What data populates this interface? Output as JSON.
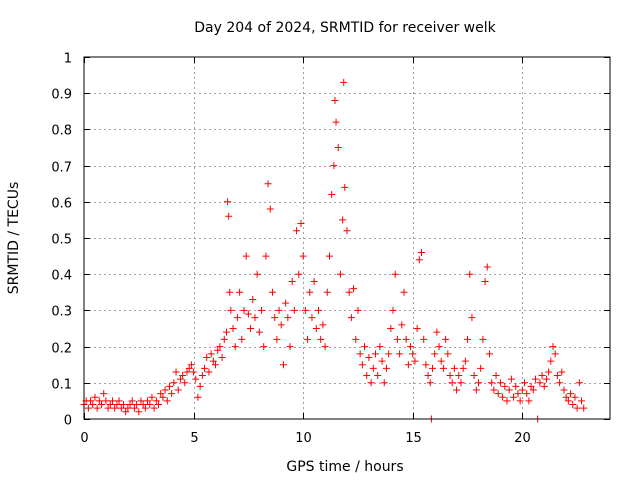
{
  "chart_data": {
    "type": "scatter",
    "title": "Day 204 of 2024, SRMTID for receiver welk",
    "xlabel": "GPS time / hours",
    "ylabel": "SRMTID / TECUs",
    "xlim": [
      0,
      24
    ],
    "ylim": [
      0,
      1
    ],
    "x_ticks": [
      0,
      5,
      10,
      15,
      20
    ],
    "x_tick_labels": [
      "0",
      "5",
      "10",
      "15",
      "20"
    ],
    "y_ticks": [
      0,
      0.1,
      0.2,
      0.3,
      0.4,
      0.5,
      0.6,
      0.7,
      0.8,
      0.9,
      1
    ],
    "y_tick_labels": [
      "0",
      "0.1",
      "0.2",
      "0.3",
      "0.4",
      "0.5",
      "0.6",
      "0.7",
      "0.8",
      "0.9",
      "1"
    ],
    "grid": true,
    "marker": "+",
    "marker_color": "#ff0000",
    "series": [
      {
        "name": "SRMTID",
        "points": [
          [
            0.0,
            0.04
          ],
          [
            0.1,
            0.05
          ],
          [
            0.2,
            0.03
          ],
          [
            0.3,
            0.05
          ],
          [
            0.4,
            0.04
          ],
          [
            0.5,
            0.06
          ],
          [
            0.6,
            0.03
          ],
          [
            0.7,
            0.05
          ],
          [
            0.8,
            0.04
          ],
          [
            0.9,
            0.07
          ],
          [
            1.0,
            0.05
          ],
          [
            1.1,
            0.03
          ],
          [
            1.2,
            0.04
          ],
          [
            1.3,
            0.05
          ],
          [
            1.4,
            0.03
          ],
          [
            1.5,
            0.04
          ],
          [
            1.6,
            0.05
          ],
          [
            1.7,
            0.03
          ],
          [
            1.8,
            0.04
          ],
          [
            1.9,
            0.02
          ],
          [
            2.0,
            0.03
          ],
          [
            2.1,
            0.04
          ],
          [
            2.2,
            0.05
          ],
          [
            2.3,
            0.03
          ],
          [
            2.4,
            0.04
          ],
          [
            2.5,
            0.02
          ],
          [
            2.6,
            0.05
          ],
          [
            2.7,
            0.04
          ],
          [
            2.8,
            0.03
          ],
          [
            2.9,
            0.05
          ],
          [
            3.0,
            0.04
          ],
          [
            3.1,
            0.06
          ],
          [
            3.2,
            0.03
          ],
          [
            3.3,
            0.05
          ],
          [
            3.4,
            0.04
          ],
          [
            3.5,
            0.07
          ],
          [
            3.6,
            0.06
          ],
          [
            3.7,
            0.08
          ],
          [
            3.8,
            0.05
          ],
          [
            3.9,
            0.09
          ],
          [
            4.0,
            0.07
          ],
          [
            4.1,
            0.1
          ],
          [
            4.2,
            0.13
          ],
          [
            4.3,
            0.08
          ],
          [
            4.4,
            0.11
          ],
          [
            4.5,
            0.12
          ],
          [
            4.6,
            0.1
          ],
          [
            4.7,
            0.13
          ],
          [
            4.8,
            0.14
          ],
          [
            4.9,
            0.15
          ],
          [
            5.0,
            0.13
          ],
          [
            5.1,
            0.11
          ],
          [
            5.2,
            0.06
          ],
          [
            5.3,
            0.09
          ],
          [
            5.4,
            0.12
          ],
          [
            5.5,
            0.14
          ],
          [
            5.6,
            0.17
          ],
          [
            5.7,
            0.13
          ],
          [
            5.8,
            0.18
          ],
          [
            5.9,
            0.16
          ],
          [
            6.0,
            0.15
          ],
          [
            6.1,
            0.19
          ],
          [
            6.2,
            0.2
          ],
          [
            6.3,
            0.17
          ],
          [
            6.4,
            0.22
          ],
          [
            6.5,
            0.24
          ],
          [
            6.55,
            0.6
          ],
          [
            6.6,
            0.56
          ],
          [
            6.65,
            0.35
          ],
          [
            6.7,
            0.3
          ],
          [
            6.8,
            0.25
          ],
          [
            6.9,
            0.2
          ],
          [
            7.0,
            0.28
          ],
          [
            7.1,
            0.35
          ],
          [
            7.2,
            0.22
          ],
          [
            7.3,
            0.3
          ],
          [
            7.4,
            0.45
          ],
          [
            7.5,
            0.29
          ],
          [
            7.6,
            0.25
          ],
          [
            7.7,
            0.33
          ],
          [
            7.8,
            0.28
          ],
          [
            7.9,
            0.4
          ],
          [
            8.0,
            0.24
          ],
          [
            8.1,
            0.3
          ],
          [
            8.2,
            0.2
          ],
          [
            8.3,
            0.45
          ],
          [
            8.4,
            0.65
          ],
          [
            8.5,
            0.58
          ],
          [
            8.6,
            0.35
          ],
          [
            8.7,
            0.28
          ],
          [
            8.8,
            0.22
          ],
          [
            8.9,
            0.3
          ],
          [
            9.0,
            0.26
          ],
          [
            9.1,
            0.15
          ],
          [
            9.2,
            0.32
          ],
          [
            9.3,
            0.28
          ],
          [
            9.4,
            0.2
          ],
          [
            9.5,
            0.38
          ],
          [
            9.6,
            0.3
          ],
          [
            9.7,
            0.52
          ],
          [
            9.8,
            0.4
          ],
          [
            9.9,
            0.54
          ],
          [
            10.0,
            0.45
          ],
          [
            10.1,
            0.3
          ],
          [
            10.2,
            0.22
          ],
          [
            10.3,
            0.35
          ],
          [
            10.4,
            0.28
          ],
          [
            10.5,
            0.38
          ],
          [
            10.6,
            0.25
          ],
          [
            10.7,
            0.3
          ],
          [
            10.8,
            0.22
          ],
          [
            10.9,
            0.26
          ],
          [
            11.0,
            0.2
          ],
          [
            11.1,
            0.35
          ],
          [
            11.2,
            0.45
          ],
          [
            11.3,
            0.62
          ],
          [
            11.4,
            0.7
          ],
          [
            11.45,
            0.88
          ],
          [
            11.5,
            0.82
          ],
          [
            11.6,
            0.75
          ],
          [
            11.7,
            0.4
          ],
          [
            11.8,
            0.55
          ],
          [
            11.85,
            0.93
          ],
          [
            11.9,
            0.64
          ],
          [
            12.0,
            0.52
          ],
          [
            12.1,
            0.35
          ],
          [
            12.2,
            0.28
          ],
          [
            12.3,
            0.36
          ],
          [
            12.4,
            0.22
          ],
          [
            12.5,
            0.3
          ],
          [
            12.6,
            0.18
          ],
          [
            12.7,
            0.15
          ],
          [
            12.8,
            0.2
          ],
          [
            12.9,
            0.12
          ],
          [
            13.0,
            0.17
          ],
          [
            13.1,
            0.1
          ],
          [
            13.2,
            0.14
          ],
          [
            13.3,
            0.18
          ],
          [
            13.4,
            0.12
          ],
          [
            13.5,
            0.2
          ],
          [
            13.6,
            0.16
          ],
          [
            13.7,
            0.1
          ],
          [
            13.8,
            0.14
          ],
          [
            13.9,
            0.18
          ],
          [
            14.0,
            0.25
          ],
          [
            14.1,
            0.3
          ],
          [
            14.2,
            0.4
          ],
          [
            14.3,
            0.22
          ],
          [
            14.4,
            0.18
          ],
          [
            14.5,
            0.26
          ],
          [
            14.6,
            0.35
          ],
          [
            14.7,
            0.22
          ],
          [
            14.8,
            0.15
          ],
          [
            14.9,
            0.2
          ],
          [
            15.0,
            0.18
          ],
          [
            15.1,
            0.16
          ],
          [
            15.2,
            0.25
          ],
          [
            15.3,
            0.44
          ],
          [
            15.4,
            0.46
          ],
          [
            15.5,
            0.22
          ],
          [
            15.6,
            0.15
          ],
          [
            15.7,
            0.12
          ],
          [
            15.8,
            0.1
          ],
          [
            15.85,
            0.0
          ],
          [
            15.9,
            0.14
          ],
          [
            16.0,
            0.18
          ],
          [
            16.1,
            0.24
          ],
          [
            16.2,
            0.2
          ],
          [
            16.3,
            0.16
          ],
          [
            16.4,
            0.14
          ],
          [
            16.5,
            0.22
          ],
          [
            16.6,
            0.18
          ],
          [
            16.7,
            0.12
          ],
          [
            16.8,
            0.1
          ],
          [
            16.9,
            0.14
          ],
          [
            17.0,
            0.08
          ],
          [
            17.1,
            0.12
          ],
          [
            17.2,
            0.1
          ],
          [
            17.3,
            0.14
          ],
          [
            17.4,
            0.16
          ],
          [
            17.5,
            0.22
          ],
          [
            17.6,
            0.4
          ],
          [
            17.7,
            0.28
          ],
          [
            17.8,
            0.12
          ],
          [
            17.9,
            0.08
          ],
          [
            18.0,
            0.1
          ],
          [
            18.1,
            0.14
          ],
          [
            18.2,
            0.22
          ],
          [
            18.3,
            0.38
          ],
          [
            18.4,
            0.42
          ],
          [
            18.5,
            0.18
          ],
          [
            18.6,
            0.1
          ],
          [
            18.7,
            0.08
          ],
          [
            18.8,
            0.12
          ],
          [
            18.9,
            0.07
          ],
          [
            19.0,
            0.1
          ],
          [
            19.1,
            0.06
          ],
          [
            19.2,
            0.09
          ],
          [
            19.3,
            0.05
          ],
          [
            19.4,
            0.08
          ],
          [
            19.5,
            0.11
          ],
          [
            19.6,
            0.06
          ],
          [
            19.7,
            0.09
          ],
          [
            19.8,
            0.07
          ],
          [
            19.9,
            0.05
          ],
          [
            20.0,
            0.08
          ],
          [
            20.1,
            0.1
          ],
          [
            20.2,
            0.07
          ],
          [
            20.3,
            0.05
          ],
          [
            20.4,
            0.09
          ],
          [
            20.5,
            0.08
          ],
          [
            20.6,
            0.11
          ],
          [
            20.7,
            0.0
          ],
          [
            20.8,
            0.1
          ],
          [
            20.9,
            0.12
          ],
          [
            21.0,
            0.09
          ],
          [
            21.1,
            0.11
          ],
          [
            21.2,
            0.13
          ],
          [
            21.3,
            0.16
          ],
          [
            21.4,
            0.2
          ],
          [
            21.5,
            0.18
          ],
          [
            21.6,
            0.12
          ],
          [
            21.7,
            0.1
          ],
          [
            21.8,
            0.13
          ],
          [
            21.9,
            0.08
          ],
          [
            22.0,
            0.06
          ],
          [
            22.1,
            0.05
          ],
          [
            22.2,
            0.07
          ],
          [
            22.3,
            0.04
          ],
          [
            22.4,
            0.06
          ],
          [
            22.5,
            0.03
          ],
          [
            22.6,
            0.1
          ],
          [
            22.7,
            0.05
          ],
          [
            22.8,
            0.03
          ]
        ]
      }
    ]
  }
}
